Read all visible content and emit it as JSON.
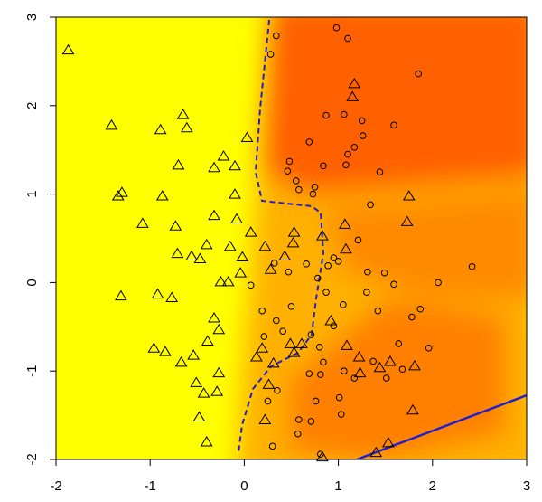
{
  "chart_data": {
    "type": "scatter",
    "xlim": [
      -2,
      3
    ],
    "ylim": [
      -2,
      3
    ],
    "xticks": [
      -2,
      -1,
      0,
      1,
      2,
      3
    ],
    "yticks": [
      -2,
      -1,
      0,
      1,
      2,
      3
    ],
    "series": [
      {
        "marker": "triangle",
        "color": "#000000",
        "x": [
          -1.87,
          -1.41,
          -1.34,
          -1.3,
          -0.89,
          -0.65,
          -0.61,
          -0.7,
          -0.87,
          -1.08,
          -0.73,
          -1.31,
          -0.92,
          -0.77,
          -0.96,
          -0.84,
          -0.67,
          -0.54,
          -0.51,
          -0.43,
          -0.48,
          -0.4,
          -0.29,
          -0.27,
          -0.39,
          -0.27,
          -0.32,
          -0.4,
          -0.47,
          -0.71,
          -0.56,
          -0.32,
          -0.32,
          -0.22,
          -0.1,
          -0.1,
          -0.08,
          -0.15,
          -0.02,
          -0.04,
          -0.25,
          -0.17,
          0.03,
          0.07,
          0.19,
          0.13,
          0.26,
          0.22,
          0.31,
          0.28,
          0.43,
          0.53,
          0.52,
          0.61,
          0.49,
          0.53,
          0.83,
          1.07,
          1.17,
          1.15,
          1.08,
          0.92,
          1.09,
          1.22,
          1.23,
          1.44,
          1.55,
          1.53,
          1.4,
          1.79,
          1.81,
          1.73,
          1.75,
          0.83,
          0.22
        ],
        "values": [
          2.63,
          1.78,
          0.98,
          1.02,
          1.73,
          1.9,
          1.75,
          1.33,
          0.98,
          0.67,
          0.64,
          -0.15,
          -0.13,
          -0.17,
          -0.74,
          -0.78,
          -0.9,
          -0.82,
          -1.13,
          -1.25,
          -1.52,
          -1.8,
          -1.23,
          -1.02,
          -0.66,
          -0.53,
          -0.4,
          0.43,
          0.27,
          0.33,
          0.3,
          0.76,
          1.3,
          1.43,
          1.32,
          1.0,
          0.72,
          0.41,
          0.29,
          0.11,
          0.01,
          0.01,
          1.64,
          0.57,
          -0.74,
          -0.84,
          -1.15,
          -1.55,
          -0.91,
          0.15,
          0.3,
          0.57,
          0.45,
          -0.69,
          -0.69,
          -0.79,
          0.53,
          0.66,
          2.25,
          2.1,
          0.38,
          -0.43,
          -0.71,
          -0.84,
          -1.02,
          -0.96,
          -0.89,
          -1.81,
          -1.92,
          -1.44,
          -0.94,
          0.69,
          0.98,
          -1.97,
          0.41
        ]
      },
      {
        "marker": "circle",
        "color": "#000000",
        "x": [
          0.98,
          0.34,
          1.1,
          1.85,
          0.28,
          1.06,
          0.87,
          1.25,
          1.26,
          1.59,
          1.17,
          0.69,
          0.48,
          0.46,
          0.84,
          1.08,
          1.44,
          0.55,
          0.75,
          0.73,
          0.58,
          1.34,
          1.1,
          0.32,
          0.47,
          0.5,
          0.66,
          0.78,
          0.89,
          0.95,
          1.0,
          1.21,
          1.31,
          1.49,
          1.59,
          1.3,
          1.05,
          1.42,
          1.87,
          1.78,
          2.06,
          2.42,
          1.96,
          1.64,
          1.37,
          1.06,
          1.17,
          1.01,
          1.03,
          0.76,
          0.71,
          0.58,
          0.35,
          0.25,
          0.3,
          0.57,
          0.81,
          0.21,
          0.71,
          0.8,
          0.84,
          0.69,
          0.81,
          0.95,
          0.87,
          0.34,
          0.41,
          0.19,
          0.07,
          1.51,
          1.68
        ],
        "values": [
          2.88,
          2.79,
          2.76,
          2.36,
          2.58,
          1.9,
          1.89,
          1.83,
          1.66,
          1.78,
          1.53,
          1.59,
          1.37,
          1.26,
          1.32,
          1.33,
          1.25,
          1.15,
          1.08,
          1.0,
          1.05,
          0.88,
          1.45,
          0.22,
          0.12,
          -0.27,
          0.21,
          0.05,
          0.19,
          0.28,
          0.24,
          0.48,
          0.12,
          0.11,
          -0.02,
          -0.11,
          -0.25,
          -0.32,
          -0.3,
          -0.39,
          0.0,
          0.18,
          -0.74,
          -0.69,
          -0.89,
          -1.0,
          -1.08,
          -1.3,
          -1.49,
          -1.34,
          -1.57,
          -1.55,
          -1.22,
          -1.34,
          -1.85,
          -1.71,
          -1.94,
          -0.61,
          -0.59,
          -0.73,
          -0.9,
          -1.03,
          -1.04,
          -0.49,
          -0.11,
          -0.43,
          -0.55,
          -0.32,
          -0.03,
          -1.08,
          -0.98
        ]
      }
    ]
  }
}
